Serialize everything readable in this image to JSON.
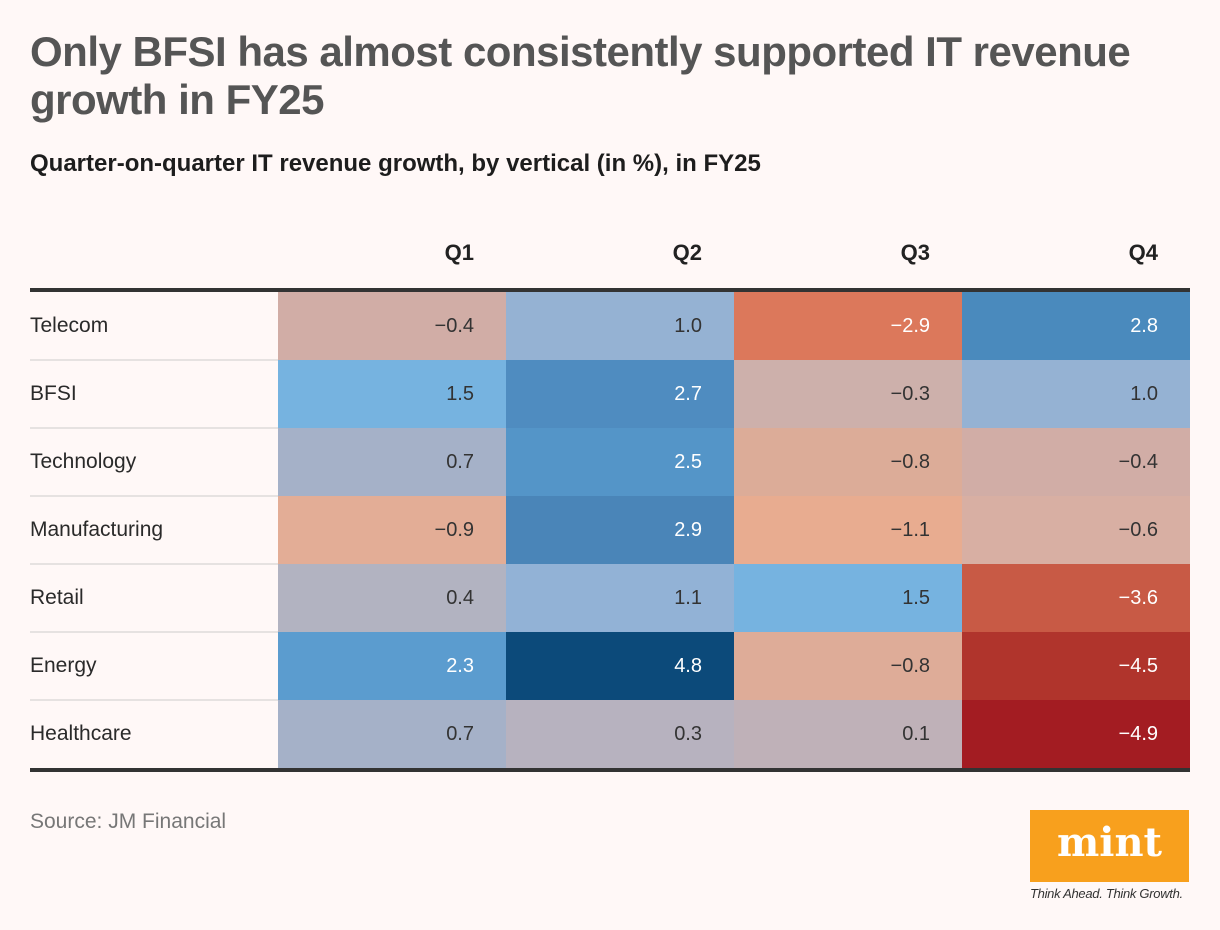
{
  "title": "Only BFSI has almost consistently supported IT revenue growth in FY25",
  "subtitle": "Quarter-on-quarter IT revenue growth, by vertical (in %), in FY25",
  "source": "Source: JM Financial",
  "logo": {
    "text": "mint",
    "tagline": "Think Ahead. Think Growth.",
    "color": "#f8a01d"
  },
  "chart_data": {
    "type": "heatmap",
    "title": "Only BFSI has almost consistently supported IT revenue growth in FY25",
    "subtitle": "Quarter-on-quarter IT revenue growth, by vertical (in %), in FY25",
    "columns": [
      "Q1",
      "Q2",
      "Q3",
      "Q4"
    ],
    "rows": [
      {
        "label": "Telecom",
        "values": [
          "−0.4",
          "1.0",
          "−2.9",
          "2.8"
        ],
        "colors": [
          "#d1ada6",
          "#95b2d3",
          "#dc785b",
          "#4a8abd"
        ]
      },
      {
        "label": "BFSI",
        "values": [
          "1.5",
          "2.7",
          "−0.3",
          "1.0"
        ],
        "colors": [
          "#76b3e0",
          "#4f8cc0",
          "#cdb0ab",
          "#95b2d3"
        ]
      },
      {
        "label": "Technology",
        "values": [
          "0.7",
          "2.5",
          "−0.8",
          "−0.4"
        ],
        "colors": [
          "#a5b1c8",
          "#5495c8",
          "#dcac98",
          "#d1ada6"
        ]
      },
      {
        "label": "Manufacturing",
        "values": [
          "−0.9",
          "2.9",
          "−1.1",
          "−0.6"
        ],
        "colors": [
          "#e3ad96",
          "#4a85b8",
          "#e8ac90",
          "#d8afa3"
        ]
      },
      {
        "label": "Retail",
        "values": [
          "0.4",
          "1.1",
          "1.5",
          "−3.6"
        ],
        "colors": [
          "#b2b3c1",
          "#92b2d6",
          "#76b3e0",
          "#c85a45"
        ]
      },
      {
        "label": "Energy",
        "values": [
          "2.3",
          "4.8",
          "−0.8",
          "−4.5"
        ],
        "colors": [
          "#5b9ccf",
          "#0c4a7a",
          "#deac98",
          "#b0342c"
        ]
      },
      {
        "label": "Healthcare",
        "values": [
          "0.7",
          "0.3",
          "0.1",
          "−4.9"
        ],
        "colors": [
          "#a5b1c8",
          "#b7b2bf",
          "#bfb1b8",
          "#a31c22"
        ]
      }
    ]
  }
}
